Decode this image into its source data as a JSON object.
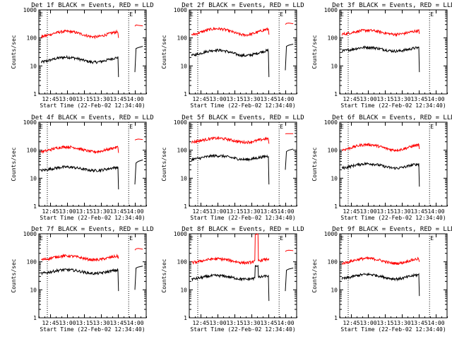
{
  "page": {
    "background": "#ffffff"
  },
  "chart_data": {
    "type": "line",
    "x_axis": {
      "label": "Start Time (22-Feb-02 12:34:40)",
      "ticks": [
        "12:45",
        "13:00",
        "13:15",
        "13:30",
        "13:45",
        "14:00"
      ],
      "tick_minutes": [
        10.33,
        25.33,
        40.33,
        55.33,
        70.33,
        85.33
      ],
      "range_minutes": [
        0,
        95
      ],
      "dotted_markers_minutes": [
        7.5,
        79.5
      ]
    },
    "y_axis": {
      "label": "Counts/sec",
      "scale": "log",
      "range": [
        1,
        1000
      ],
      "ticks": [
        "1",
        "10",
        "100",
        "1000"
      ]
    },
    "grid": false,
    "colors": {
      "events": "#000000",
      "lld": "#ff0000",
      "frame": "#000000"
    },
    "legend_text": "BLACK = Events, RED = LLD",
    "panels": [
      {
        "title": "Det 1f BLACK = Events, RED = LLD",
        "E_label": "E",
        "series": [
          {
            "name": "Events",
            "color": "#000000",
            "base": 17,
            "amp": 0.2,
            "end_dip": 4,
            "after": [
              6,
              42,
              45,
              50
            ]
          },
          {
            "name": "LLD",
            "color": "#ff0000",
            "base": 140,
            "amp": 0.22,
            "end_dip": 100,
            "after": [
              260,
              290,
              280,
              270
            ]
          }
        ]
      },
      {
        "title": "Det 2f BLACK = Events, RED = LLD",
        "E_label": "E",
        "series": [
          {
            "name": "Events",
            "color": "#000000",
            "base": 30,
            "amp": 0.22,
            "end_dip": 4,
            "after": [
              7,
              50,
              55,
              60
            ]
          },
          {
            "name": "LLD",
            "color": "#ff0000",
            "base": 170,
            "amp": 0.25,
            "end_dip": 130,
            "after": [
              300,
              330,
              340,
              320
            ]
          }
        ]
      },
      {
        "title": "Det 3f BLACK = Events, RED = LLD",
        "E_label": "E",
        "series": [
          {
            "name": "Events",
            "color": "#000000",
            "base": 40,
            "amp": 0.15,
            "end_dip": 6,
            "after": []
          },
          {
            "name": "LLD",
            "color": "#ff0000",
            "base": 160,
            "amp": 0.16,
            "end_dip": 140,
            "after": []
          }
        ]
      },
      {
        "title": "Det 4f BLACK = Events, RED = LLD",
        "E_label": "E",
        "series": [
          {
            "name": "Events",
            "color": "#000000",
            "base": 22,
            "amp": 0.14,
            "end_dip": 4,
            "after": [
              6,
              35,
              40,
              45
            ]
          },
          {
            "name": "LLD",
            "color": "#ff0000",
            "base": 110,
            "amp": 0.2,
            "end_dip": 80,
            "after": [
              230,
              240,
              250,
              240
            ]
          }
        ]
      },
      {
        "title": "Det 5f BLACK = Events, RED = LLD",
        "E_label": "E",
        "series": [
          {
            "name": "Events",
            "color": "#000000",
            "base": 55,
            "amp": 0.15,
            "end_dip": 6,
            "after": [
              20,
              90,
              100,
              110
            ]
          },
          {
            "name": "LLD",
            "color": "#ff0000",
            "base": 230,
            "amp": 0.16,
            "end_dip": 170,
            "after": [
              380,
              390,
              390,
              390
            ]
          }
        ]
      },
      {
        "title": "Det 6f BLACK = Events, RED = LLD",
        "E_label": "E",
        "series": [
          {
            "name": "Events",
            "color": "#000000",
            "base": 28,
            "amp": 0.18,
            "end_dip": 5,
            "after": []
          },
          {
            "name": "LLD",
            "color": "#ff0000",
            "base": 130,
            "amp": 0.22,
            "end_dip": 110,
            "after": []
          }
        ]
      },
      {
        "title": "Det 7f BLACK = Events, RED = LLD",
        "E_label": "E",
        "series": [
          {
            "name": "Events",
            "color": "#000000",
            "base": 45,
            "amp": 0.15,
            "end_dip": 9,
            "after": [
              10,
              60,
              65,
              70
            ]
          },
          {
            "name": "LLD",
            "color": "#ff0000",
            "base": 140,
            "amp": 0.16,
            "end_dip": 130,
            "after": [
              260,
              290,
              300,
              280
            ]
          }
        ]
      },
      {
        "title": "Det 8f BLACK = Events, RED = LLD",
        "E_label": "E",
        "series": [
          {
            "name": "Events",
            "color": "#000000",
            "base": 28,
            "amp": 0.15,
            "end_dip": 4,
            "after": [
              9,
              50,
              55,
              60
            ],
            "spike": 75
          },
          {
            "name": "LLD",
            "color": "#ff0000",
            "base": 110,
            "amp": 0.16,
            "end_dip": 130,
            "after": [
              230,
              250,
              260,
              250
            ],
            "spike": 1000
          }
        ]
      },
      {
        "title": "Det 9f BLACK = Events, RED = LLD",
        "E_label": "E",
        "series": [
          {
            "name": "Events",
            "color": "#000000",
            "base": 30,
            "amp": 0.18,
            "end_dip": 6,
            "after": []
          },
          {
            "name": "LLD",
            "color": "#ff0000",
            "base": 110,
            "amp": 0.2,
            "end_dip": 100,
            "after": []
          }
        ]
      }
    ]
  }
}
